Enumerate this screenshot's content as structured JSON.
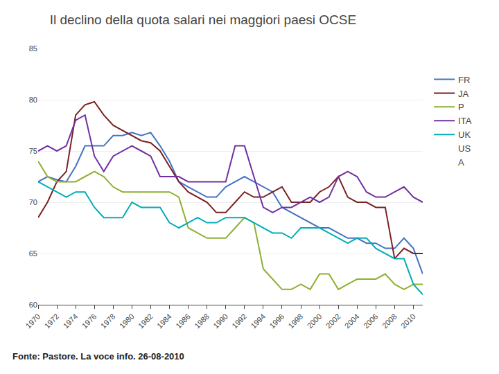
{
  "chart_data": {
    "type": "line",
    "title": "Il declino della quota salari nei maggiori paesi OCSE",
    "annotations": [
      "Fonte: Pastore. La voce info. 26-08-2010"
    ],
    "x": [
      1970,
      1971,
      1972,
      1973,
      1974,
      1975,
      1976,
      1977,
      1978,
      1979,
      1980,
      1981,
      1982,
      1983,
      1984,
      1985,
      1986,
      1987,
      1988,
      1989,
      1990,
      1991,
      1992,
      1993,
      1994,
      1995,
      1996,
      1997,
      1998,
      1999,
      2000,
      2001,
      2002,
      2003,
      2004,
      2005,
      2006,
      2007,
      2008,
      2009,
      2010,
      2011
    ],
    "series": [
      {
        "name": "FR",
        "color": "#4472c4",
        "values": [
          72.0,
          72.5,
          72.2,
          72.0,
          73.5,
          75.5,
          75.5,
          75.5,
          76.5,
          76.5,
          76.8,
          76.5,
          76.8,
          75.5,
          74.0,
          72.0,
          71.5,
          71.0,
          70.5,
          70.5,
          71.5,
          72.0,
          72.5,
          72.0,
          71.5,
          71.0,
          69.5,
          69.0,
          68.5,
          68.0,
          67.5,
          67.5,
          67.0,
          66.5,
          66.5,
          66.0,
          66.0,
          65.5,
          65.5,
          66.5,
          65.5,
          63.0
        ]
      },
      {
        "name": "JA",
        "color": "#7b2020",
        "values": [
          68.5,
          70.0,
          72.0,
          73.0,
          78.5,
          79.5,
          79.8,
          78.5,
          77.5,
          77.0,
          76.5,
          76.0,
          75.8,
          75.0,
          73.5,
          72.0,
          71.0,
          70.5,
          70.0,
          69.0,
          69.0,
          70.0,
          71.0,
          70.5,
          70.5,
          71.0,
          71.5,
          70.0,
          70.0,
          70.0,
          71.0,
          71.5,
          72.5,
          70.5,
          70.0,
          70.0,
          69.5,
          69.5,
          64.5,
          65.5,
          65.0,
          65.0
        ]
      },
      {
        "name": "P",
        "color": "#8db030",
        "values": [
          74.0,
          72.5,
          72.0,
          72.0,
          72.0,
          72.5,
          73.0,
          72.5,
          71.5,
          71.0,
          71.0,
          71.0,
          71.0,
          71.0,
          71.0,
          70.5,
          67.5,
          67.0,
          66.5,
          66.5,
          66.5,
          67.5,
          68.5,
          68.0,
          63.5,
          62.5,
          61.5,
          61.5,
          62.0,
          61.5,
          63.0,
          63.0,
          61.5,
          62.0,
          62.5,
          62.5,
          62.5,
          63.0,
          62.0,
          61.5,
          62.0,
          62.0
        ]
      },
      {
        "name": "ITA",
        "color": "#7030a0",
        "values": [
          75.0,
          75.5,
          75.0,
          75.5,
          78.0,
          78.5,
          74.5,
          73.0,
          74.5,
          75.0,
          75.5,
          75.0,
          74.5,
          72.5,
          72.5,
          72.5,
          72.0,
          72.0,
          72.0,
          72.0,
          72.0,
          75.5,
          75.5,
          72.5,
          69.5,
          69.0,
          69.5,
          69.5,
          70.0,
          70.5,
          70.0,
          70.5,
          72.5,
          73.0,
          72.5,
          71.0,
          70.5,
          70.5,
          71.0,
          71.5,
          70.5,
          70.0
        ]
      },
      {
        "name": "UK",
        "color": "#00adb5",
        "values": [
          72.0,
          71.5,
          71.0,
          70.5,
          71.0,
          71.0,
          69.5,
          68.5,
          68.5,
          68.5,
          70.0,
          69.5,
          69.5,
          69.5,
          68.0,
          67.5,
          68.0,
          68.5,
          68.0,
          68.0,
          68.5,
          68.5,
          68.5,
          68.0,
          67.5,
          67.0,
          67.0,
          66.5,
          67.5,
          67.5,
          67.5,
          67.0,
          66.5,
          66.0,
          66.5,
          66.5,
          65.5,
          65.0,
          64.5,
          64.5,
          62.0,
          61.0
        ]
      },
      {
        "name": "US",
        "values": [
          null,
          null,
          null,
          null,
          null,
          null,
          null,
          null,
          null,
          null,
          null,
          null,
          null,
          null,
          null,
          null,
          null,
          null,
          null,
          null,
          null,
          null,
          null,
          null,
          null,
          null,
          null,
          null,
          null,
          null,
          null,
          null,
          null,
          null,
          null,
          null,
          null,
          null,
          null,
          null,
          null,
          null
        ]
      },
      {
        "name": "A",
        "values": [
          null,
          null,
          null,
          null,
          null,
          null,
          null,
          null,
          null,
          null,
          null,
          null,
          null,
          null,
          null,
          null,
          null,
          null,
          null,
          null,
          null,
          null,
          null,
          null,
          null,
          null,
          null,
          null,
          null,
          null,
          null,
          null,
          null,
          null,
          null,
          null,
          null,
          null,
          null,
          null,
          null,
          null
        ]
      }
    ],
    "xlim": [
      1970,
      2011
    ],
    "xticks": [
      1970,
      1972,
      1974,
      1976,
      1978,
      1980,
      1982,
      1984,
      1986,
      1988,
      1990,
      1992,
      1994,
      1996,
      1998,
      2000,
      2002,
      2004,
      2006,
      2008,
      2010
    ],
    "ylim": [
      60,
      85
    ],
    "yticks": [
      60,
      65,
      70,
      75,
      80,
      85
    ],
    "grid": "y",
    "legend": "right"
  }
}
